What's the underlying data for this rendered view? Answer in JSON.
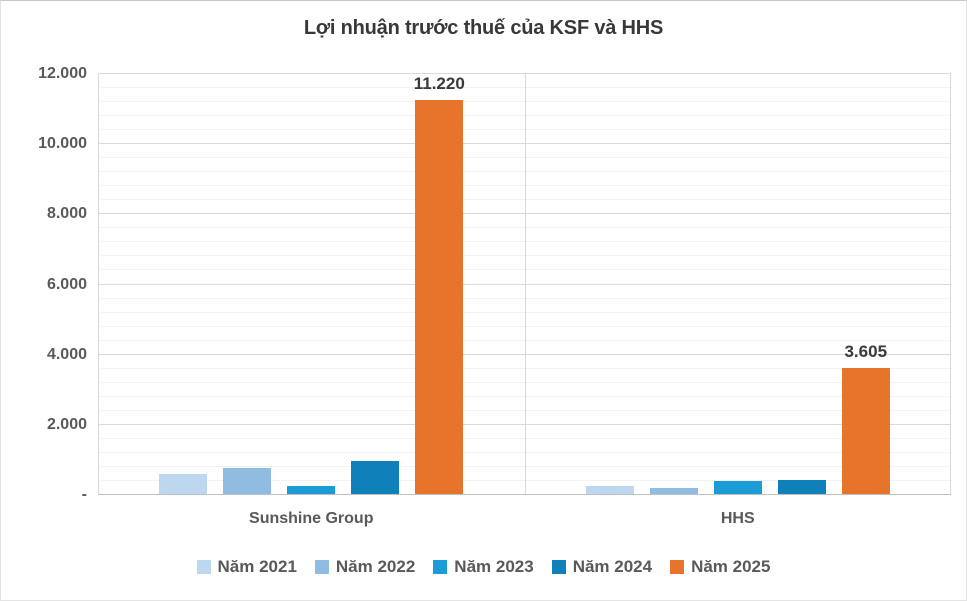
{
  "title": "Lợi nhuận trước thuế của KSF và HHS",
  "colors": {
    "grid_major": "#d9d9d9",
    "grid_minor": "#f2f2f2",
    "axis_line": "#bfbfbf",
    "plot_border": "#d9d9d9",
    "tick_text": "#595959",
    "label_text": "#3a3a3a"
  },
  "chart_data": {
    "type": "bar",
    "title": "Lợi nhuận trước thuế của KSF và HHS",
    "xlabel": "",
    "ylabel": "",
    "ylim": [
      0,
      12000
    ],
    "y_major_step": 2000,
    "y_minor_step": 400,
    "grid": true,
    "legend_position": "bottom",
    "categories": [
      "Sunshine Group",
      "HHS"
    ],
    "series": [
      {
        "name": "Năm 2021",
        "color": "#bdd7ee",
        "values": [
          580,
          220
        ],
        "labels": [
          null,
          null
        ]
      },
      {
        "name": "Năm 2022",
        "color": "#8fbce0",
        "values": [
          740,
          185
        ],
        "labels": [
          null,
          null
        ]
      },
      {
        "name": "Năm 2023",
        "color": "#1b9cd6",
        "values": [
          220,
          370
        ],
        "labels": [
          null,
          null
        ]
      },
      {
        "name": "Năm 2024",
        "color": "#1080b8",
        "values": [
          950,
          400
        ],
        "labels": [
          null,
          null
        ]
      },
      {
        "name": "Năm 2025",
        "color": "#e8742c",
        "values": [
          11220,
          3605
        ],
        "labels": [
          "11.220",
          "3.605"
        ]
      }
    ],
    "y_ticks": [
      {
        "value": 0,
        "label": "-"
      },
      {
        "value": 2000,
        "label": "2.000"
      },
      {
        "value": 4000,
        "label": "4.000"
      },
      {
        "value": 6000,
        "label": "6.000"
      },
      {
        "value": 8000,
        "label": "8.000"
      },
      {
        "value": 10000,
        "label": "10.000"
      },
      {
        "value": 12000,
        "label": "12.000"
      }
    ]
  }
}
